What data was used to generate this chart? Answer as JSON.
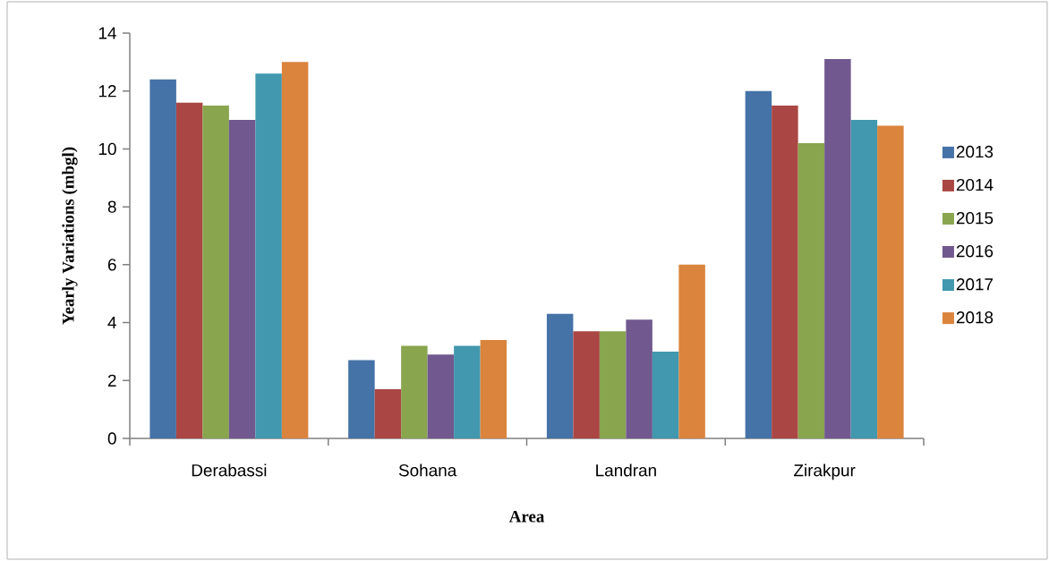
{
  "chart_data": {
    "type": "bar",
    "xlabel": "Area",
    "ylabel": "Yearly Variations (mbgl)",
    "categories": [
      "Derabassi",
      "Sohana",
      "Landran",
      "Zirakpur"
    ],
    "series": [
      {
        "name": "2013",
        "color": "#4572a7",
        "values": [
          12.4,
          2.7,
          4.3,
          12.0
        ]
      },
      {
        "name": "2014",
        "color": "#aa4643",
        "values": [
          11.6,
          1.7,
          3.7,
          11.5
        ]
      },
      {
        "name": "2015",
        "color": "#89a54e",
        "values": [
          11.5,
          3.2,
          3.7,
          10.2
        ]
      },
      {
        "name": "2016",
        "color": "#71588f",
        "values": [
          11.0,
          2.9,
          4.1,
          13.1
        ]
      },
      {
        "name": "2017",
        "color": "#4198af",
        "values": [
          12.6,
          3.2,
          3.0,
          11.0
        ]
      },
      {
        "name": "2018",
        "color": "#db843d",
        "values": [
          13.0,
          3.4,
          6.0,
          10.8
        ]
      }
    ],
    "ylim": [
      0,
      14
    ],
    "yticks": [
      0,
      2,
      4,
      6,
      8,
      10,
      12,
      14
    ],
    "grid": false,
    "legend": "right"
  }
}
